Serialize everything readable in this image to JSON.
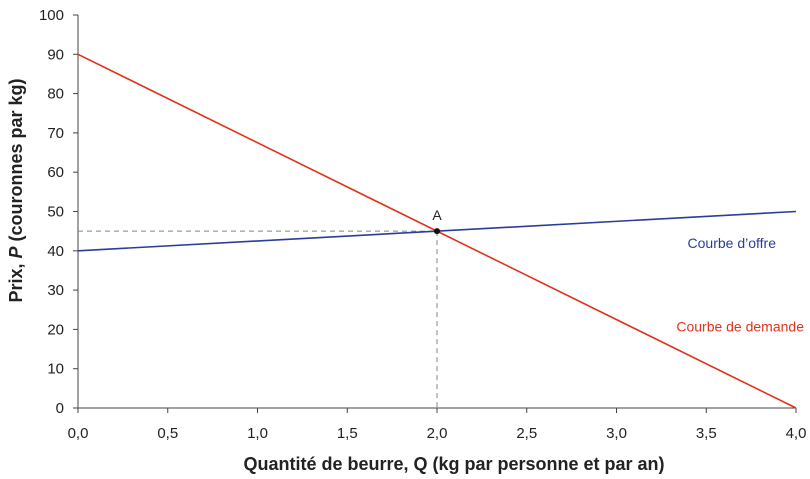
{
  "chart_data": {
    "type": "line",
    "xlabel": "Quantité de beurre, Q (kg par personne et par an)",
    "ylabel_prefix": "Prix, ",
    "ylabel_var": "P",
    "ylabel_suffix": " (couronnes par kg)",
    "xlim": [
      0,
      4
    ],
    "ylim": [
      0,
      100
    ],
    "x_ticks": [
      "0,0",
      "0,5",
      "1,0",
      "1,5",
      "2,0",
      "2,5",
      "3,0",
      "3,5",
      "4,0"
    ],
    "y_ticks": [
      "0",
      "10",
      "20",
      "30",
      "40",
      "50",
      "60",
      "70",
      "80",
      "90",
      "100"
    ],
    "grid": false,
    "series": [
      {
        "name": "Courbe d’offre",
        "color": "#2b3d9b",
        "x": [
          0,
          4
        ],
        "y": [
          40,
          50
        ]
      },
      {
        "name": "Courbe de demande",
        "color": "#e0331c",
        "x": [
          0,
          4
        ],
        "y": [
          90,
          0
        ]
      }
    ],
    "equilibrium": {
      "label": "A",
      "x": 2.0,
      "y": 45
    }
  }
}
